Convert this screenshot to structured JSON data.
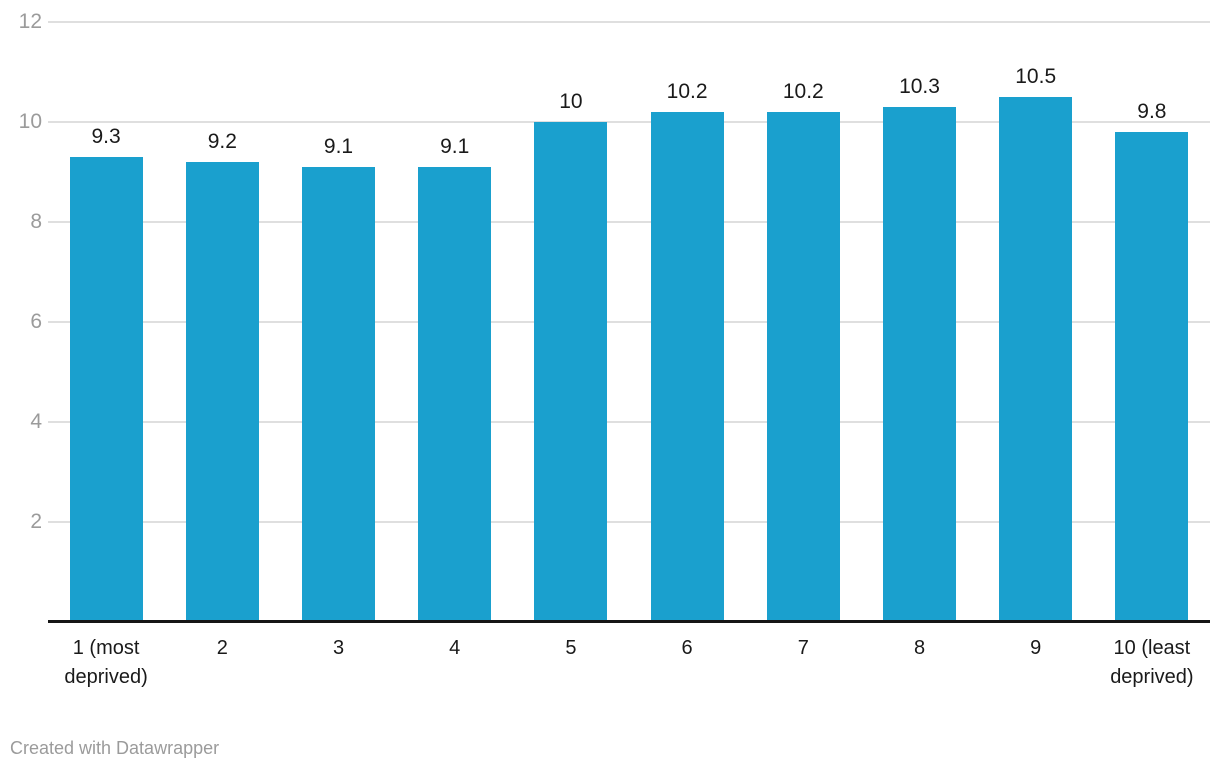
{
  "chart": {
    "footer": "Created with Datawrapper"
  },
  "chart_data": {
    "type": "bar",
    "title": "",
    "xlabel": "",
    "ylabel": "",
    "categories": [
      "1 (most deprived)",
      "2",
      "3",
      "4",
      "5",
      "6",
      "7",
      "8",
      "9",
      "10 (least deprived)"
    ],
    "values": [
      9.3,
      9.2,
      9.1,
      9.1,
      10,
      10.2,
      10.2,
      10.3,
      10.5,
      9.8
    ],
    "value_labels": [
      "9.3",
      "9.2",
      "9.1",
      "9.1",
      "10",
      "10.2",
      "10.2",
      "10.3",
      "10.5",
      "9.8"
    ],
    "ylim": [
      0,
      12
    ],
    "yticks": [
      2,
      4,
      6,
      8,
      10,
      12
    ],
    "grid": true,
    "legend_position": "none",
    "colors": {
      "bar": "#1aa0ce",
      "value_label": "#1a1a1a",
      "category_label": "#1a1a1a",
      "y_tick_label": "#9b9b9b",
      "gridline": "#dfdfdf",
      "baseline": "#161616",
      "footer": "#9b9b9b"
    }
  }
}
